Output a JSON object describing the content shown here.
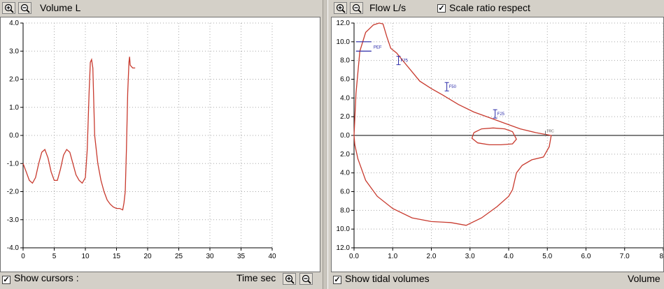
{
  "left": {
    "title": "Volume L",
    "show_cursors_label": "Show cursors :",
    "show_cursors_checked": true,
    "x_axis_label": "Time sec",
    "icons": [
      "zoom-in-icon",
      "zoom-out-icon"
    ]
  },
  "right": {
    "title": "Flow L/s",
    "scale_ratio_label": "Scale ratio respect",
    "scale_ratio_checked": true,
    "show_tidal_label": "Show tidal volumes",
    "show_tidal_checked": true,
    "x_axis_label": "Volume",
    "markers": [
      "PEF",
      "F75",
      "F50",
      "F25",
      "FRC"
    ]
  },
  "chart_data": [
    {
      "type": "line",
      "title": "Volume L",
      "xlabel": "Time sec",
      "ylabel": "Volume L",
      "xlim": [
        0,
        40
      ],
      "ylim": [
        -4.0,
        4.0
      ],
      "x_ticks": [
        "0",
        "5",
        "10",
        "15",
        "20",
        "25",
        "30",
        "35",
        "40"
      ],
      "y_ticks": [
        "4.0",
        "3.0",
        "2.0",
        "1.0",
        "0.0",
        "-1.0",
        "-2.0",
        "-3.0",
        "-4.0"
      ],
      "grid": true,
      "line_color": "#c83a2e",
      "x": [
        0,
        0.5,
        1,
        1.5,
        2,
        2.5,
        3,
        3.5,
        4,
        4.5,
        5,
        5.5,
        6,
        6.5,
        7,
        7.5,
        8,
        8.5,
        9,
        9.5,
        10,
        10.3,
        10.6,
        10.8,
        11,
        11.2,
        11.5,
        12,
        12.5,
        13,
        13.5,
        14,
        14.5,
        15,
        15.5,
        16,
        16.2,
        16.4,
        16.6,
        16.8,
        17,
        17.1,
        17.2,
        17.4,
        17.6,
        18
      ],
      "y": [
        -1.0,
        -1.3,
        -1.6,
        -1.7,
        -1.5,
        -1.0,
        -0.6,
        -0.5,
        -0.8,
        -1.3,
        -1.6,
        -1.6,
        -1.2,
        -0.7,
        -0.5,
        -0.6,
        -1.0,
        -1.4,
        -1.6,
        -1.7,
        -1.5,
        -0.5,
        1.5,
        2.6,
        2.7,
        2.4,
        0.0,
        -1.0,
        -1.6,
        -2.0,
        -2.3,
        -2.45,
        -2.55,
        -2.6,
        -2.6,
        -2.65,
        -2.4,
        -2.0,
        -0.5,
        1.5,
        2.6,
        2.8,
        2.5,
        2.45,
        2.4,
        2.4
      ]
    },
    {
      "type": "line",
      "title": "Flow L/s",
      "xlabel": "Volume",
      "ylabel": "Flow L/s",
      "xlim": [
        0,
        8
      ],
      "ylim": [
        -12.0,
        12.0
      ],
      "x_ticks": [
        "0.0",
        "1.0",
        "2.0",
        "3.0",
        "4.0",
        "5.0",
        "6.0",
        "7.0",
        "8"
      ],
      "y_ticks": [
        "12.0",
        "10.0",
        "8.0",
        "6.0",
        "4.0",
        "2.0",
        "0.0",
        "2.0",
        "4.0",
        "6.0",
        "8.0",
        "10.0",
        "12.0"
      ],
      "grid": true,
      "line_color": "#c83a2e",
      "series": [
        {
          "name": "Expiratory-Inspiratory loop",
          "x": [
            0,
            0.05,
            0.15,
            0.3,
            0.5,
            0.65,
            0.75,
            0.85,
            0.95,
            1.1,
            1.3,
            1.5,
            1.7,
            2.0,
            2.3,
            2.7,
            3.1,
            3.5,
            3.9,
            4.3,
            4.7,
            5.1,
            5.05,
            4.9,
            4.6,
            4.35,
            4.2,
            4.1,
            4.0,
            3.7,
            3.3,
            2.9,
            2.5,
            2.0,
            1.5,
            1.0,
            0.6,
            0.3,
            0.1,
            0.02,
            0
          ],
          "y": [
            0,
            4.5,
            9.0,
            11.0,
            11.8,
            12.0,
            11.9,
            10.5,
            9.3,
            8.8,
            7.8,
            6.8,
            5.8,
            5.0,
            4.3,
            3.3,
            2.5,
            1.9,
            1.3,
            0.7,
            0.3,
            0.0,
            -1.2,
            -2.3,
            -2.6,
            -3.2,
            -4.0,
            -5.8,
            -6.5,
            -7.6,
            -8.8,
            -9.6,
            -9.3,
            -9.2,
            -8.8,
            -7.8,
            -6.5,
            -4.8,
            -2.5,
            -1.0,
            0
          ]
        },
        {
          "name": "Tidal loop",
          "x": [
            3.1,
            3.3,
            3.6,
            3.9,
            4.1,
            4.2,
            4.1,
            3.8,
            3.5,
            3.2,
            3.05,
            3.1
          ],
          "y": [
            0.3,
            0.7,
            0.8,
            0.7,
            0.4,
            -0.4,
            -0.9,
            -1.0,
            -1.0,
            -0.8,
            -0.3,
            0.3
          ]
        }
      ],
      "annotations": [
        {
          "label": "PEF",
          "x": 0.45,
          "y": 9.5
        },
        {
          "label": "F75",
          "x": 1.15,
          "y": 8.0
        },
        {
          "label": "F50",
          "x": 2.4,
          "y": 5.2
        },
        {
          "label": "F25",
          "x": 3.65,
          "y": 2.3
        },
        {
          "label": "FRC",
          "x": 4.95,
          "y": 0.2
        }
      ]
    }
  ]
}
